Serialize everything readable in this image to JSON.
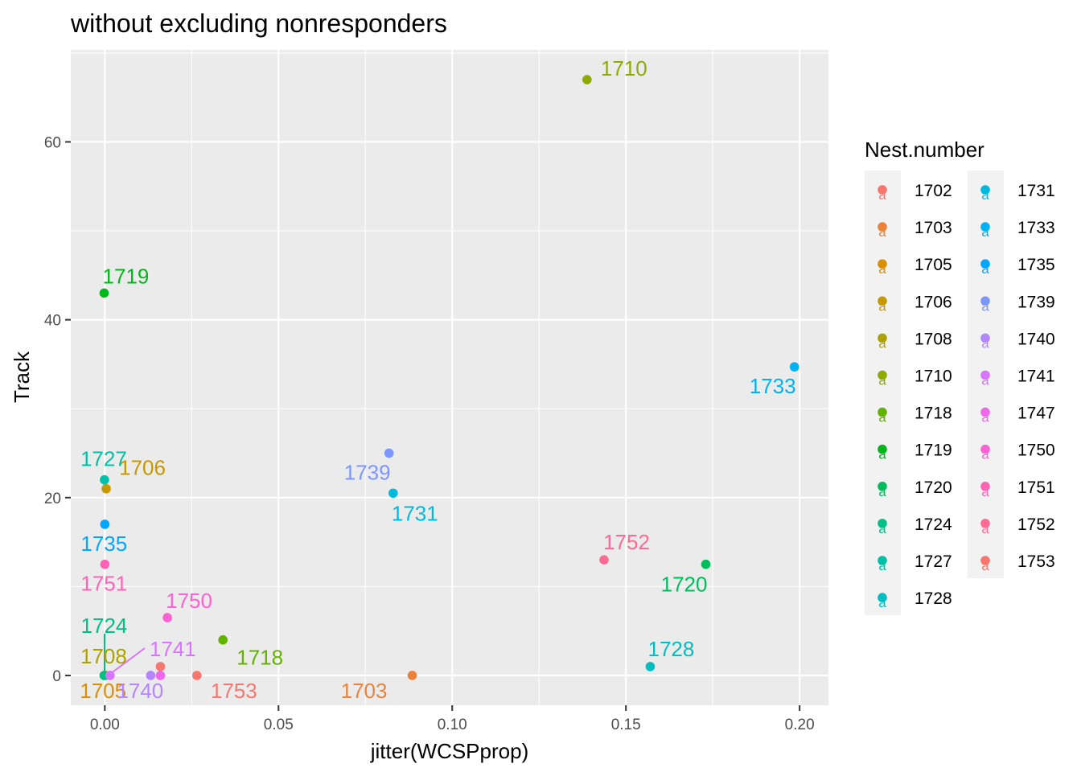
{
  "chart_data": {
    "type": "scatter",
    "title": "without excluding nonresponders",
    "xlabel": "jitter(WCSPprop)",
    "ylabel": "Track",
    "xlim": [
      -0.0098,
      0.2083
    ],
    "ylim": [
      -3.35,
      70.35
    ],
    "x_ticks": [
      0.0,
      0.05,
      0.1,
      0.15,
      0.2
    ],
    "x_tick_labels": [
      "0.00",
      "0.05",
      "0.10",
      "0.15",
      "0.20"
    ],
    "y_ticks": [
      0,
      20,
      40,
      60
    ],
    "y_tick_labels": [
      "0",
      "20",
      "40",
      "60"
    ],
    "grid": true,
    "legend": {
      "title": "Nest.number",
      "placement": "right",
      "glyph": "a",
      "columns": [
        [
          "1702",
          "1703",
          "1705",
          "1706",
          "1708",
          "1710",
          "1718",
          "1719",
          "1720",
          "1724",
          "1727",
          "1728"
        ],
        [
          "1731",
          "1733",
          "1735",
          "1739",
          "1740",
          "1741",
          "1747",
          "1750",
          "1751",
          "1752",
          "1753"
        ]
      ]
    },
    "points": [
      {
        "nest": "1702",
        "x": 0.016,
        "y": 1.0,
        "label": ""
      },
      {
        "nest": "1703",
        "x": 0.0885,
        "y": 0.0,
        "label": "1703"
      },
      {
        "nest": "1705",
        "x": 0.0002,
        "y": 0.0,
        "label": "1705"
      },
      {
        "nest": "1706",
        "x": 0.0004,
        "y": 21.0,
        "label": "1706"
      },
      {
        "nest": "1708",
        "x": -0.0001,
        "y": 0.0,
        "label": "1708"
      },
      {
        "nest": "1710",
        "x": 0.1388,
        "y": 67.0,
        "label": "1710"
      },
      {
        "nest": "1718",
        "x": 0.034,
        "y": 4.0,
        "label": "1718"
      },
      {
        "nest": "1719",
        "x": -0.0002,
        "y": 43.0,
        "label": "1719"
      },
      {
        "nest": "1720",
        "x": 0.173,
        "y": 12.5,
        "label": "1720"
      },
      {
        "nest": "1724",
        "x": -0.0002,
        "y": 0.0,
        "label": "1724"
      },
      {
        "nest": "1727",
        "x": -0.0001,
        "y": 22.0,
        "label": "1727"
      },
      {
        "nest": "1728",
        "x": 0.157,
        "y": 1.0,
        "label": "1728"
      },
      {
        "nest": "1731",
        "x": 0.083,
        "y": 20.5,
        "label": "1731"
      },
      {
        "nest": "1733",
        "x": 0.1985,
        "y": 34.7,
        "label": "1733"
      },
      {
        "nest": "1735",
        "x": 0.0,
        "y": 17.0,
        "label": "1735"
      },
      {
        "nest": "1739",
        "x": 0.0818,
        "y": 25.0,
        "label": "1739"
      },
      {
        "nest": "1740",
        "x": 0.0132,
        "y": 0.0,
        "label": "1740"
      },
      {
        "nest": "1741",
        "x": 0.0015,
        "y": 0.0,
        "label": "1741"
      },
      {
        "nest": "1747",
        "x": 0.016,
        "y": 0.0,
        "label": ""
      },
      {
        "nest": "1750",
        "x": 0.018,
        "y": 6.5,
        "label": "1750"
      },
      {
        "nest": "1751",
        "x": 0.0,
        "y": 12.5,
        "label": "1751"
      },
      {
        "nest": "1752",
        "x": 0.1437,
        "y": 13.0,
        "label": "1752"
      },
      {
        "nest": "1753",
        "x": 0.0265,
        "y": 0.0,
        "label": "1753"
      }
    ],
    "colors": {
      "1702": "#F8766D",
      "1703": "#EC8239",
      "1705": "#DB8E00",
      "1706": "#C79800",
      "1708": "#AEA200",
      "1710": "#8FAA00",
      "1718": "#64B200",
      "1719": "#00B81B",
      "1720": "#00BD5C",
      "1724": "#00C085",
      "1727": "#00C1A7",
      "1728": "#00BFC4",
      "1731": "#00BADE",
      "1733": "#00B2F3",
      "1735": "#00A6FF",
      "1739": "#7C96FF",
      "1740": "#B385FF",
      "1741": "#D874FD",
      "1747": "#EF67EB",
      "1750": "#FD61D3",
      "1751": "#FF63B6",
      "1752": "#FF6B94",
      "1753": "#F8766D"
    }
  }
}
